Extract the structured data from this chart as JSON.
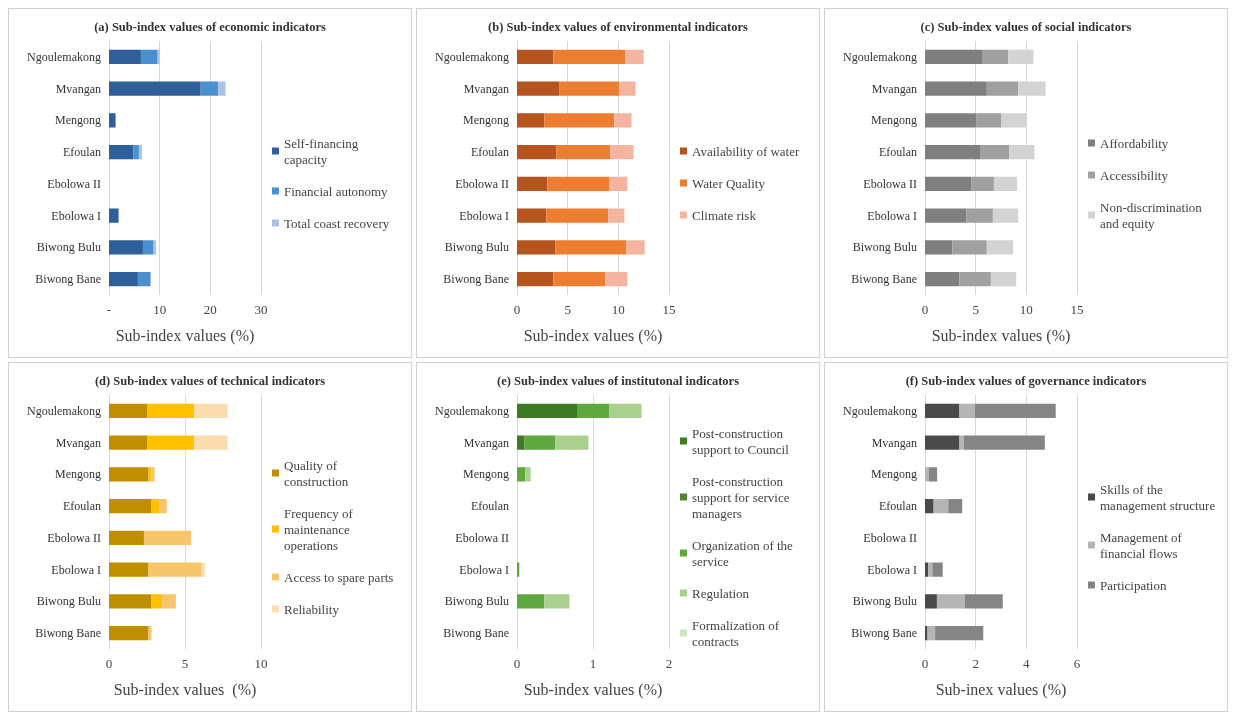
{
  "chart_data": [
    {
      "type": "bar",
      "title": "(a) Sub-index values of economic indicators",
      "xlabel": "Sub-index values (%)",
      "orientation": "horizontal",
      "stacked": true,
      "grid": "x",
      "legend": "right",
      "categories": [
        "Ngoulemakong",
        "Mvangan",
        "Mengong",
        "Efoulan",
        "Ebolowa II",
        "Ebolowa I",
        "Biwong Bulu",
        "Biwong Bane"
      ],
      "xlim": [
        0,
        30
      ],
      "xticks": [
        {
          "value": 0,
          "label": "-"
        },
        10,
        20,
        30
      ],
      "series": [
        {
          "name": "Self-financing capacity",
          "color": "#2e5f9a",
          "values": [
            6.3,
            18.1,
            1.3,
            4.8,
            0,
            1.9,
            6.7,
            5.7
          ]
        },
        {
          "name": "Financial autonomy",
          "color": "#4a8fd0",
          "values": [
            3.3,
            3.4,
            0,
            1.1,
            0,
            0,
            2.1,
            2.5
          ]
        },
        {
          "name": "Total coast recovery",
          "color": "#a9c3e6",
          "values": [
            0.4,
            1.5,
            0,
            0.6,
            0,
            0,
            0.5,
            0
          ]
        }
      ]
    },
    {
      "type": "bar",
      "title": "(b) Sub-index values of environmental indicators",
      "xlabel": "Sub-index values (%)",
      "orientation": "horizontal",
      "stacked": true,
      "grid": "x",
      "legend": "right",
      "categories": [
        "Ngoulemakong",
        "Mvangan",
        "Mengong",
        "Efoulan",
        "Ebolowa II",
        "Ebolowa I",
        "Biwong Bulu",
        "Biwong Bane"
      ],
      "xlim": [
        0,
        15
      ],
      "xticks": [
        0,
        5,
        10,
        15
      ],
      "series": [
        {
          "name": "Availability of water",
          "color": "#b5541c",
          "values": [
            3.6,
            4.2,
            2.7,
            3.9,
            3.0,
            2.9,
            3.8,
            3.6
          ]
        },
        {
          "name": "Water Quality",
          "color": "#ed7d31",
          "values": [
            7.1,
            5.9,
            6.9,
            5.3,
            6.1,
            6.1,
            7.0,
            5.1
          ]
        },
        {
          "name": "Climate risk",
          "color": "#f4b5a0",
          "values": [
            1.8,
            1.6,
            1.7,
            2.3,
            1.8,
            1.6,
            1.8,
            2.2
          ]
        }
      ]
    },
    {
      "type": "bar",
      "title": "(c) Sub-index values of social indicators",
      "xlabel": "Sub-index values (%)",
      "orientation": "horizontal",
      "stacked": true,
      "grid": "x",
      "legend": "right",
      "categories": [
        "Ngoulemakong",
        "Mvangan",
        "Mengong",
        "Efoulan",
        "Ebolowa II",
        "Ebolowa I",
        "Biwong Bulu",
        "Biwong Bane"
      ],
      "xlim": [
        0,
        15
      ],
      "xticks": [
        0,
        5,
        10,
        15
      ],
      "series": [
        {
          "name": "Affordability",
          "color": "#7f7f7f",
          "values": [
            5.7,
            6.1,
            5.1,
            5.5,
            4.6,
            4.1,
            2.7,
            3.4
          ]
        },
        {
          "name": "Accessibility",
          "color": "#a0a0a0",
          "values": [
            2.5,
            3.1,
            2.4,
            2.8,
            2.2,
            2.6,
            3.4,
            3.1
          ]
        },
        {
          "name": "Non-discrimination and equity",
          "color": "#d3d3d3",
          "values": [
            2.5,
            2.7,
            2.5,
            2.5,
            2.3,
            2.5,
            2.6,
            2.5
          ]
        }
      ]
    },
    {
      "type": "bar",
      "title": "(d) Sub-index values of technical indicators",
      "xlabel": "Sub-index values  (%)",
      "orientation": "horizontal",
      "stacked": true,
      "grid": "x",
      "legend": "right",
      "categories": [
        "Ngoulemakong",
        "Mvangan",
        "Mengong",
        "Efoulan",
        "Ebolowa II",
        "Ebolowa I",
        "Biwong Bulu",
        "Biwong Bane"
      ],
      "xlim": [
        0,
        10
      ],
      "xticks": [
        0,
        5,
        10
      ],
      "series": [
        {
          "name": "Quality of construction",
          "color": "#bf8f00",
          "values": [
            2.5,
            2.5,
            2.6,
            2.8,
            2.3,
            2.6,
            2.8,
            2.6
          ]
        },
        {
          "name": "Frequency of maintenance operations",
          "color": "#ffc000",
          "values": [
            3.1,
            3.1,
            0.2,
            0.5,
            0,
            0,
            0.7,
            0
          ]
        },
        {
          "name": "Access to spare parts",
          "color": "#f8c66a",
          "values": [
            0,
            0,
            0.2,
            0.5,
            3.1,
            3.5,
            0.9,
            0.2
          ]
        },
        {
          "name": "Reliability",
          "color": "#fbdcae",
          "values": [
            2.2,
            2.2,
            0,
            0,
            0,
            0.2,
            0,
            0
          ]
        }
      ]
    },
    {
      "type": "bar",
      "title": "(e) Sub-index values of institutonal indicators",
      "xlabel": "Sub-index values (%)",
      "orientation": "horizontal",
      "stacked": true,
      "grid": "x",
      "legend": "right",
      "categories": [
        "Ngoulemakong",
        "Mvangan",
        "Mengong",
        "Efoulan",
        "Ebolowa II",
        "Ebolowa I",
        "Biwong Bulu",
        "Biwong Bane"
      ],
      "xlim": [
        0,
        2
      ],
      "xticks": [
        0,
        1,
        2
      ],
      "series": [
        {
          "name": "Post-construction support to Council",
          "color": "#3e7b27",
          "values": [
            0.8,
            0.1,
            0,
            0,
            0,
            0,
            0,
            0
          ]
        },
        {
          "name": "Post-construction support for service managers",
          "color": "#548235",
          "values": [
            0,
            0,
            0,
            0,
            0,
            0,
            0,
            0
          ]
        },
        {
          "name": "Organization of the service",
          "color": "#5fa83f",
          "values": [
            0.41,
            0.4,
            0.11,
            0,
            0,
            0.03,
            0.36,
            0
          ]
        },
        {
          "name": "Regulation",
          "color": "#a9d08e",
          "values": [
            0.43,
            0.44,
            0.07,
            0,
            0,
            0,
            0.33,
            0
          ]
        },
        {
          "name": "Formalization of contracts",
          "color": "#cfe5c0",
          "values": [
            0,
            0,
            0,
            0,
            0,
            0,
            0,
            0
          ]
        }
      ]
    },
    {
      "type": "bar",
      "title": "(f) Sub-index values of governance indicators",
      "xlabel": "Sub-inex values (%)",
      "orientation": "horizontal",
      "stacked": true,
      "grid": "x",
      "legend": "right",
      "categories": [
        "Ngoulemakong",
        "Mvangan",
        "Mengong",
        "Efoulan",
        "Ebolowa II",
        "Ebolowa I",
        "Biwong Bulu",
        "Biwong Bane"
      ],
      "xlim": [
        0,
        6
      ],
      "xticks": [
        0,
        2,
        4,
        6
      ],
      "series": [
        {
          "name": "Skills of the management structure",
          "color": "#4a4a4a",
          "values": [
            1.36,
            1.36,
            0,
            0.34,
            0,
            0.12,
            0.47,
            0.1
          ]
        },
        {
          "name": "Management of financial flows",
          "color": "#b5b5b5",
          "values": [
            0.6,
            0.17,
            0.15,
            0.58,
            0,
            0.17,
            1.1,
            0.3
          ]
        },
        {
          "name": "Participation",
          "color": "#858585",
          "values": [
            3.2,
            3.2,
            0.33,
            0.55,
            0,
            0.41,
            1.5,
            1.9
          ]
        }
      ]
    }
  ]
}
